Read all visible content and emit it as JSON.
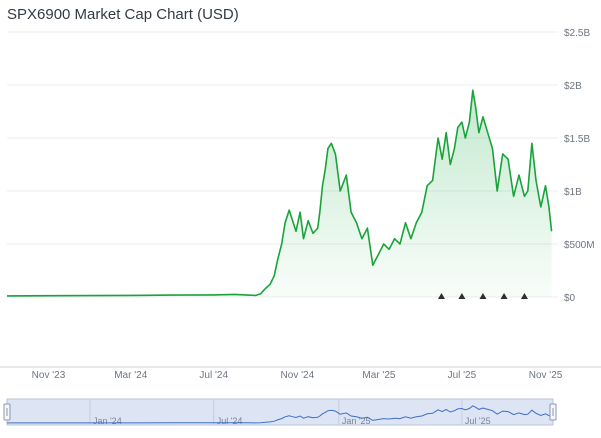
{
  "title": "SPX6900 Market Cap Chart (USD)",
  "colors": {
    "line": "#19a33a",
    "area_top": "#2bb352",
    "grid": "#e9ecef",
    "axis_text": "#6e7681",
    "navigator_fill": "#dde4f4",
    "navigator_line": "#3e6fc4",
    "event_marker": "#2d2d2d"
  },
  "chart_data": {
    "type": "area",
    "title": "SPX6900 Market Cap Chart (USD)",
    "xlabel": "",
    "ylabel": "",
    "ylim": [
      0,
      2500000000
    ],
    "xlim": [
      "2023-09-01",
      "2025-11-12"
    ],
    "grid": true,
    "legend": "none",
    "y_ticks": [
      {
        "value": 0,
        "label": "$0"
      },
      {
        "value": 500000000,
        "label": "$500M"
      },
      {
        "value": 1000000000,
        "label": "$1B"
      },
      {
        "value": 1500000000,
        "label": "$1.5B"
      },
      {
        "value": 2000000000,
        "label": "$2B"
      },
      {
        "value": 2500000000,
        "label": "$2.5B"
      }
    ],
    "x_ticks": [
      {
        "date": "2023-11-01",
        "label": "Nov '23"
      },
      {
        "date": "2024-03-01",
        "label": "Mar '24"
      },
      {
        "date": "2024-07-01",
        "label": "Jul '24"
      },
      {
        "date": "2024-11-01",
        "label": "Nov '24"
      },
      {
        "date": "2025-03-01",
        "label": "Mar '25"
      },
      {
        "date": "2025-07-01",
        "label": "Jul '25"
      },
      {
        "date": "2025-11-01",
        "label": "Nov '25"
      }
    ],
    "series": [
      {
        "x": [
          "2023-09-01",
          "2023-11-01",
          "2024-01-01",
          "2024-03-01",
          "2024-05-01",
          "2024-07-01",
          "2024-08-01",
          "2024-08-20",
          "2024-09-01",
          "2024-09-08",
          "2024-09-15",
          "2024-09-22",
          "2024-09-28",
          "2024-10-03",
          "2024-10-09",
          "2024-10-14",
          "2024-10-20",
          "2024-10-25",
          "2024-10-30",
          "2024-11-05",
          "2024-11-10",
          "2024-11-17",
          "2024-11-24",
          "2024-12-01",
          "2024-12-04",
          "2024-12-08",
          "2024-12-12",
          "2024-12-16",
          "2024-12-21",
          "2024-12-27",
          "2025-01-03",
          "2025-01-12",
          "2025-01-19",
          "2025-01-27",
          "2025-02-04",
          "2025-02-12",
          "2025-02-20",
          "2025-02-28",
          "2025-03-08",
          "2025-03-16",
          "2025-03-24",
          "2025-04-01",
          "2025-04-09",
          "2025-04-17",
          "2025-04-25",
          "2025-05-03",
          "2025-05-11",
          "2025-05-19",
          "2025-05-27",
          "2025-06-02",
          "2025-06-08",
          "2025-06-14",
          "2025-06-20",
          "2025-06-25",
          "2025-07-01",
          "2025-07-06",
          "2025-07-12",
          "2025-07-17",
          "2025-07-21",
          "2025-07-26",
          "2025-08-01",
          "2025-08-08",
          "2025-08-15",
          "2025-08-22",
          "2025-08-30",
          "2025-09-07",
          "2025-09-15",
          "2025-09-23",
          "2025-10-01",
          "2025-10-06",
          "2025-10-12",
          "2025-10-18",
          "2025-10-25",
          "2025-11-01",
          "2025-11-06",
          "2025-11-10"
        ],
        "y": [
          10000000,
          12000000,
          13000000,
          15000000,
          18000000,
          20000000,
          25000000,
          18000000,
          15000000,
          30000000,
          80000000,
          120000000,
          200000000,
          350000000,
          500000000,
          700000000,
          820000000,
          720000000,
          620000000,
          800000000,
          550000000,
          720000000,
          600000000,
          650000000,
          800000000,
          1050000000,
          1200000000,
          1400000000,
          1450000000,
          1350000000,
          1000000000,
          1150000000,
          800000000,
          700000000,
          550000000,
          650000000,
          300000000,
          400000000,
          500000000,
          450000000,
          550000000,
          500000000,
          700000000,
          550000000,
          700000000,
          800000000,
          1050000000,
          1100000000,
          1500000000,
          1300000000,
          1550000000,
          1250000000,
          1400000000,
          1600000000,
          1650000000,
          1500000000,
          1650000000,
          1950000000,
          1800000000,
          1550000000,
          1700000000,
          1550000000,
          1400000000,
          1000000000,
          1350000000,
          1300000000,
          950000000,
          1150000000,
          950000000,
          1000000000,
          1450000000,
          1100000000,
          850000000,
          1050000000,
          850000000,
          620000000
        ]
      }
    ],
    "event_markers": [
      "2025-06-01",
      "2025-07-01",
      "2025-08-01",
      "2025-09-01",
      "2025-10-01"
    ],
    "navigator_labels": [
      {
        "date": "2024-01-01",
        "label": "Jan '24"
      },
      {
        "date": "2024-07-01",
        "label": "Jul '24"
      },
      {
        "date": "2025-01-01",
        "label": "Jan '25"
      },
      {
        "date": "2025-07-01",
        "label": "Jul '25"
      }
    ]
  }
}
